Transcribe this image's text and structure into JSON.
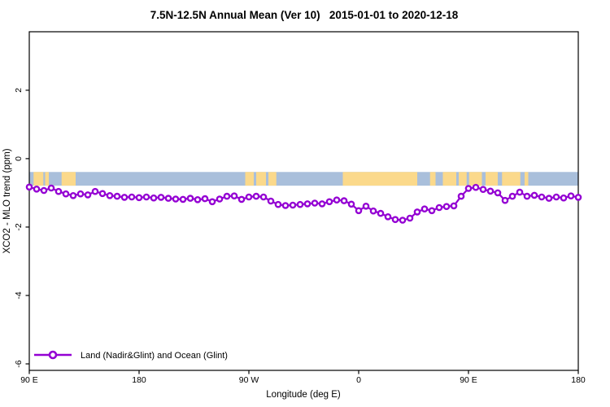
{
  "title": "7.5N-12.5N Annual Mean (Ver 10)   2015-01-01 to 2020-12-18",
  "chart_data": {
    "type": "line",
    "title": "7.5N-12.5N Annual Mean (Ver 10)   2015-01-01 to 2020-12-18",
    "xlabel": "Longitude (deg E)",
    "ylabel": "XCO2 - MLO trend (ppm)",
    "xlim": [
      90,
      540
    ],
    "ylim": [
      -6.19,
      3.71
    ],
    "grid": false,
    "x_ticks": [
      {
        "pos": 90,
        "label": "90 E"
      },
      {
        "pos": 180,
        "label": "180"
      },
      {
        "pos": 270,
        "label": "90 W"
      },
      {
        "pos": 360,
        "label": "0"
      },
      {
        "pos": 450,
        "label": "90 E"
      },
      {
        "pos": 540,
        "label": "180"
      }
    ],
    "y_ticks": [
      {
        "pos": 2,
        "label": "2"
      },
      {
        "pos": 0,
        "label": "0"
      },
      {
        "pos": -2,
        "label": "-2"
      },
      {
        "pos": -4,
        "label": "-4"
      },
      {
        "pos": -6,
        "label": "-6"
      }
    ],
    "legend": {
      "position": "bottom-left",
      "entries": [
        "Land (Nadir&Glint) and Ocean (Glint)"
      ]
    },
    "series": [
      {
        "name": "Land (Nadir&Glint) and Ocean (Glint)",
        "color": "#9400D3",
        "marker": "open-circle",
        "x": [
          90,
          96,
          102,
          108,
          114,
          120,
          126,
          132,
          138,
          144,
          150,
          156,
          162,
          168,
          174,
          180,
          186,
          192,
          198,
          204,
          210,
          216,
          222,
          228,
          234,
          240,
          246,
          252,
          258,
          264,
          270,
          276,
          282,
          288,
          294,
          300,
          306,
          312,
          318,
          324,
          330,
          336,
          342,
          348,
          354,
          360,
          366,
          372,
          378,
          384,
          390,
          396,
          402,
          408,
          414,
          420,
          426,
          432,
          438,
          444,
          450,
          456,
          462,
          468,
          474,
          480,
          486,
          492,
          498,
          504,
          510,
          516,
          522,
          528,
          534,
          540
        ],
        "y": [
          -0.83,
          -0.89,
          -0.93,
          -0.86,
          -0.96,
          -1.03,
          -1.08,
          -1.03,
          -1.06,
          -0.96,
          -1.02,
          -1.08,
          -1.1,
          -1.13,
          -1.12,
          -1.14,
          -1.12,
          -1.15,
          -1.13,
          -1.16,
          -1.18,
          -1.19,
          -1.16,
          -1.2,
          -1.17,
          -1.26,
          -1.18,
          -1.1,
          -1.09,
          -1.19,
          -1.12,
          -1.1,
          -1.12,
          -1.24,
          -1.34,
          -1.37,
          -1.36,
          -1.34,
          -1.32,
          -1.3,
          -1.32,
          -1.26,
          -1.21,
          -1.23,
          -1.33,
          -1.52,
          -1.39,
          -1.53,
          -1.6,
          -1.7,
          -1.78,
          -1.8,
          -1.74,
          -1.56,
          -1.47,
          -1.52,
          -1.43,
          -1.4,
          -1.38,
          -1.1,
          -0.87,
          -0.84,
          -0.9,
          -0.95,
          -1.0,
          -1.22,
          -1.1,
          -0.98,
          -1.1,
          -1.07,
          -1.12,
          -1.16,
          -1.12,
          -1.15,
          -1.09,
          -1.13
        ]
      }
    ],
    "map_band": {
      "description": "world map strip of the 7.5N-12.5N latitude band",
      "y_range_ppm": [
        -0.39,
        -0.79
      ],
      "ocean_color": "#A9BFDB",
      "land_color": "#FBD98B",
      "land_segments_deg": [
        [
          93.5,
          101.5
        ],
        [
          103,
          106
        ],
        [
          116.5,
          128
        ],
        [
          267,
          274
        ],
        [
          276,
          284
        ],
        [
          286,
          292.5
        ],
        [
          347,
          408
        ],
        [
          418.5,
          423
        ],
        [
          429,
          440
        ],
        [
          442,
          448.5
        ],
        [
          450.5,
          461
        ],
        [
          464,
          474
        ],
        [
          477.5,
          492.5
        ],
        [
          496,
          499
        ]
      ]
    },
    "colors": {
      "series": "#9400D3",
      "axis": "#000000",
      "background": "#FFFFFF"
    }
  }
}
